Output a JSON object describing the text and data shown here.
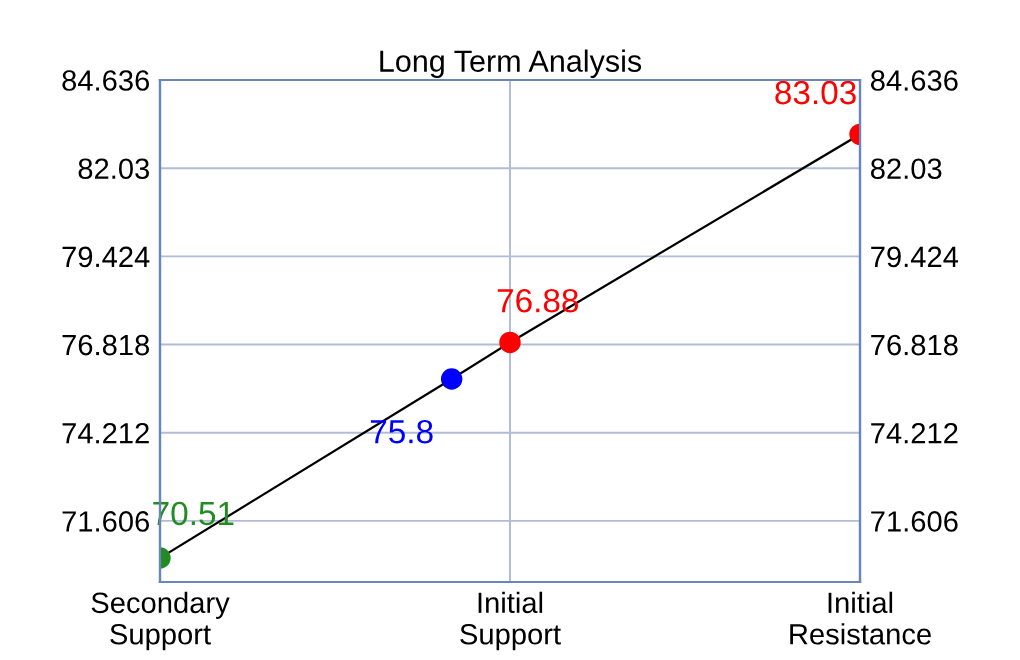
{
  "chart_data": {
    "type": "line",
    "title": "Long Term Analysis",
    "categories": [
      "Secondary Support",
      null,
      null,
      null,
      null,
      null,
      "Initial Support",
      null,
      null,
      null,
      null,
      null,
      "Initial Resistance"
    ],
    "ylim": [
      69.8,
      84.636
    ],
    "yticks": [
      71.606,
      74.212,
      76.818,
      79.424,
      82.03,
      84.636
    ],
    "y2lim": [
      69.8,
      84.636
    ],
    "y2ticks": [
      71.606,
      74.212,
      76.818,
      79.424,
      82.03,
      84.636
    ],
    "series": [
      {
        "color": "#000000",
        "values": [
          70.51,
          null,
          null,
          null,
          null,
          75.8,
          76.88,
          null,
          null,
          null,
          null,
          null,
          83.03
        ],
        "colors": [
          "#228b22",
          null,
          null,
          null,
          null,
          "#0000ff",
          "#ff0000",
          null,
          null,
          null,
          null,
          null,
          "#ff0000"
        ]
      }
    ],
    "data_labels": true,
    "grid": true,
    "marker": "circle"
  }
}
